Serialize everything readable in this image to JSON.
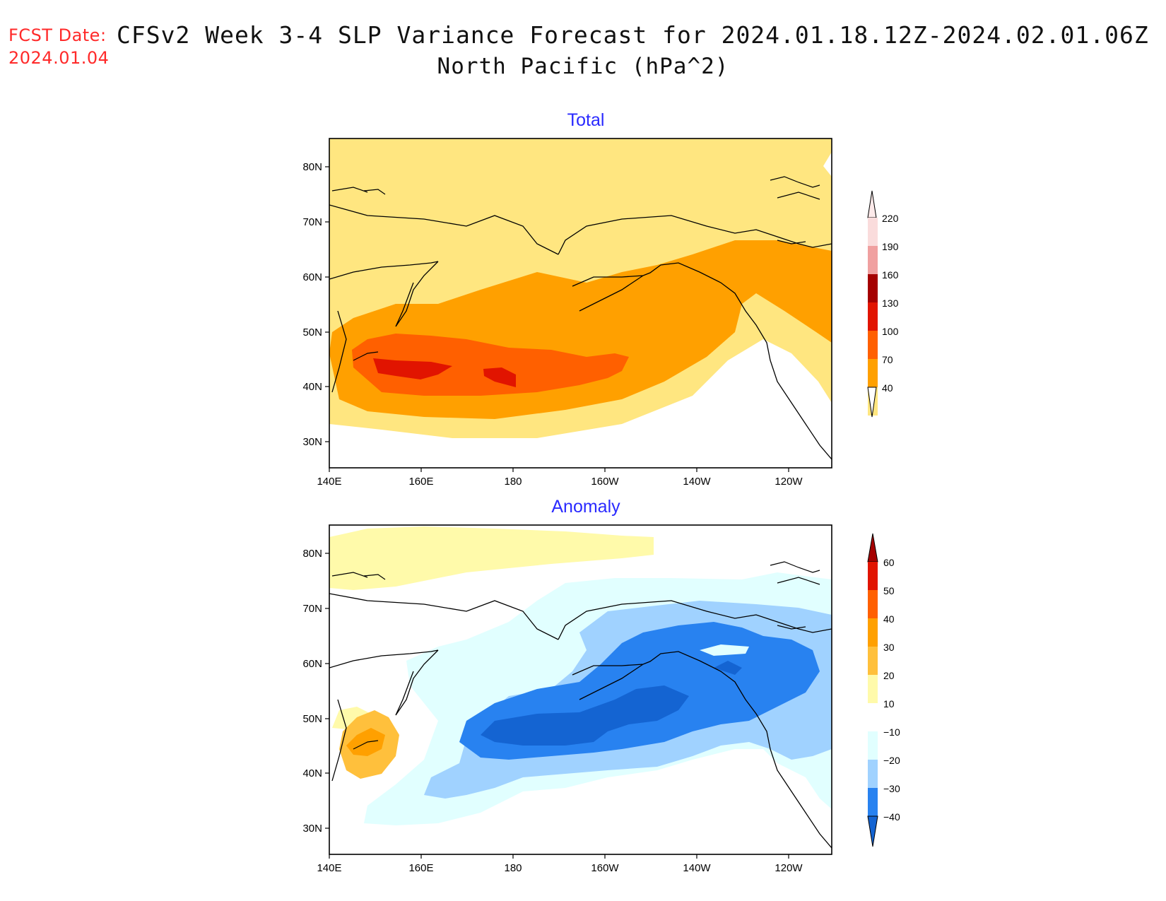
{
  "header": {
    "fcst_label": "FCST Date:",
    "fcst_date": "2024.01.04",
    "title": "CFSv2 Week 3-4 SLP Variance Forecast for 2024.01.18.12Z-2024.02.01.06Z",
    "subtitle": "North Pacific (hPa^2)"
  },
  "map_extent": {
    "lon_range_east": [
      140,
      250
    ],
    "lat_range": [
      25,
      85
    ],
    "lon_ticks": [
      "140E",
      "160E",
      "180",
      "160W",
      "140W",
      "120W"
    ],
    "lat_ticks": [
      "80N",
      "70N",
      "60N",
      "50N",
      "40N",
      "30N"
    ]
  },
  "panels": [
    {
      "title": "Total",
      "title_color": "#2a2aff",
      "colorbar": {
        "levels": [
          "40",
          "70",
          "100",
          "130",
          "160",
          "190",
          "220"
        ],
        "colors": [
          "#ffe680",
          "#ffa000",
          "#ff6000",
          "#e11400",
          "#a50000",
          "#f0a0a0",
          "#fadcdc"
        ],
        "extend": "both"
      }
    },
    {
      "title": "Anomaly",
      "title_color": "#2a2aff",
      "colorbar": {
        "levels": [
          "60",
          "50",
          "40",
          "30",
          "20",
          "10",
          "−10",
          "−20",
          "−30",
          "−40"
        ],
        "colors_top_to_bottom": [
          "#a50000",
          "#e11400",
          "#ff6000",
          "#ffa000",
          "#ffc03c",
          "#fffaaa",
          "#ffffff",
          "#e1ffff",
          "#a0d2ff",
          "#2882f0",
          "#1464d2"
        ],
        "extend": "both"
      }
    }
  ]
}
